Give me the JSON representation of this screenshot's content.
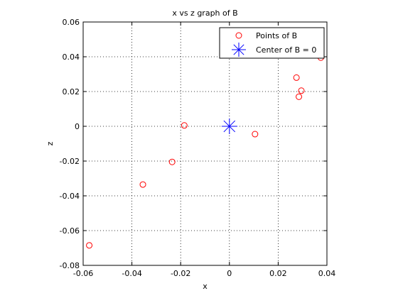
{
  "chart_data": {
    "type": "scatter",
    "title": "x vs z graph of B",
    "xlabel": "x",
    "ylabel": "z",
    "xlim": [
      -0.06,
      0.04
    ],
    "ylim": [
      -0.08,
      0.06
    ],
    "xticks": [
      -0.06,
      -0.04,
      -0.02,
      0,
      0.02,
      0.04
    ],
    "yticks": [
      -0.08,
      -0.06,
      -0.04,
      -0.02,
      0,
      0.02,
      0.04,
      0.06
    ],
    "xtick_labels": [
      "-0.06",
      "-0.04",
      "-0.02",
      "0",
      "0.02",
      "0.04"
    ],
    "ytick_labels": [
      "-0.08",
      "-0.06",
      "-0.04",
      "-0.02",
      "0",
      "0.02",
      "0.04",
      "0.06"
    ],
    "grid": true,
    "legend_position": "top-right",
    "series": [
      {
        "name": "Points of B",
        "marker": "circle",
        "color": "#ff0000",
        "points": [
          [
            -0.0575,
            -0.0685
          ],
          [
            -0.0355,
            -0.0335
          ],
          [
            -0.0235,
            -0.0205
          ],
          [
            -0.0185,
            0.0005
          ],
          [
            0.0105,
            -0.0045
          ],
          [
            0.0275,
            0.028
          ],
          [
            0.0285,
            0.017
          ],
          [
            0.0295,
            0.0205
          ],
          [
            0.0375,
            0.0395
          ]
        ]
      },
      {
        "name": "Center of B = 0",
        "marker": "star",
        "color": "#0000ff",
        "points": [
          [
            0,
            0
          ]
        ]
      }
    ]
  }
}
